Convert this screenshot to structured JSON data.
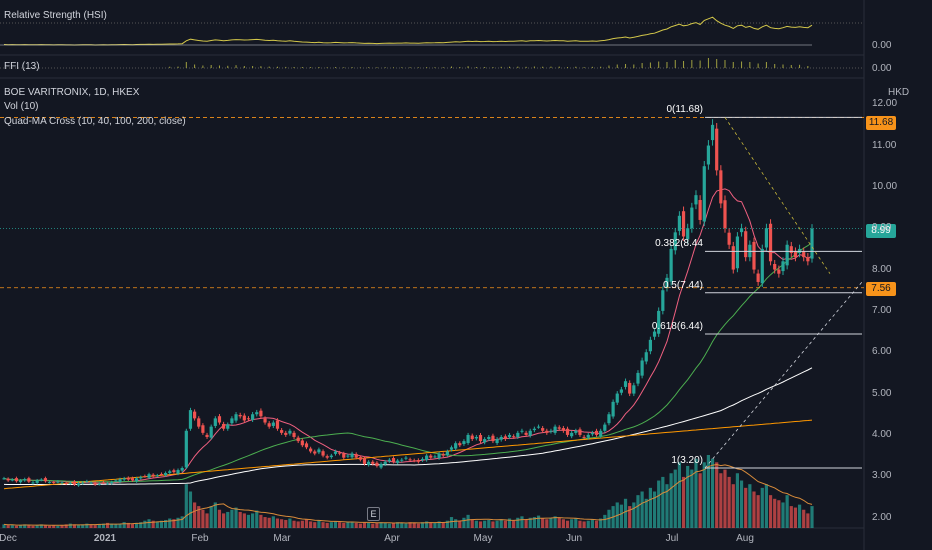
{
  "indicators": {
    "rs_label": "Relative Strength (HSI)",
    "rs_value": "0.00",
    "ffi_label": "FFI (13)",
    "ffi_value": "0.00",
    "symbol_title": "BOE VARITRONIX, 1D, HKEX",
    "vol_label": "Vol (10)",
    "ma_label": "Quad-MA Cross (10, 40, 100, 200, close)"
  },
  "currency": "HKD",
  "price_tags": {
    "high": "11.68",
    "last": "8.99",
    "support": "7.56"
  },
  "event_marker": "E",
  "colors": {
    "up": "#26a69a",
    "down": "#ef5350",
    "ma10": "#f06080",
    "ma40": "#4caf50",
    "ma100": "#ffffff",
    "ma200": "#ff9800",
    "rs": "#d4c84a",
    "vol_ma": "#d88b3a",
    "bg": "#131722",
    "high_tag": "#f7931a",
    "last_tag": "#26a69a"
  },
  "chart_data": {
    "type": "candlestick",
    "ylim": [
      1.7,
      12.15
    ],
    "y_ticks": [
      "12.00",
      "11.00",
      "10.00",
      "9.00",
      "8.00",
      "7.00",
      "6.00",
      "5.00",
      "4.00",
      "3.00",
      "2.00"
    ],
    "x_ticks": [
      "Dec",
      "2021",
      "Feb",
      "Mar",
      "Apr",
      "May",
      "Jun",
      "Jul",
      "Aug"
    ],
    "fib_levels": [
      {
        "label": "0(11.68)",
        "value": 11.68
      },
      {
        "label": "0.382(8.44",
        "value": 8.44
      },
      {
        "label": "0.5(7.44)",
        "value": 7.44
      },
      {
        "label": "0.618(6.44)",
        "value": 6.44
      },
      {
        "label": "1(3.20)",
        "value": 3.2
      }
    ],
    "horizontal_levels": {
      "high": 11.68,
      "last": 8.99,
      "support": 7.56
    },
    "series": {
      "close": [
        2.95,
        2.9,
        2.92,
        2.88,
        2.9,
        2.93,
        2.87,
        2.85,
        2.9,
        2.92,
        2.88,
        2.86,
        2.84,
        2.87,
        2.85,
        2.82,
        2.84,
        2.8,
        2.83,
        2.85,
        2.88,
        2.85,
        2.8,
        2.82,
        2.85,
        2.83,
        2.86,
        2.9,
        2.93,
        2.95,
        2.92,
        2.9,
        2.95,
        2.98,
        3.0,
        3.05,
        3.0,
        3.02,
        3.05,
        3.08,
        3.12,
        3.1,
        3.15,
        3.2,
        4.1,
        4.6,
        4.4,
        4.2,
        4.05,
        3.95,
        4.2,
        4.4,
        4.3,
        4.15,
        4.25,
        4.4,
        4.5,
        4.45,
        4.35,
        4.4,
        4.5,
        4.55,
        4.45,
        4.3,
        4.2,
        4.3,
        4.15,
        4.05,
        4.0,
        4.1,
        3.95,
        3.85,
        3.75,
        3.7,
        3.6,
        3.55,
        3.65,
        3.5,
        3.45,
        3.5,
        3.6,
        3.55,
        3.45,
        3.5,
        3.55,
        3.45,
        3.4,
        3.3,
        3.35,
        3.3,
        3.25,
        3.3,
        3.35,
        3.4,
        3.35,
        3.38,
        3.4,
        3.45,
        3.4,
        3.38,
        3.35,
        3.42,
        3.5,
        3.45,
        3.48,
        3.55,
        3.5,
        3.6,
        3.7,
        3.8,
        3.75,
        3.85,
        4.0,
        3.9,
        3.95,
        3.85,
        3.9,
        3.95,
        3.85,
        3.9,
        3.95,
        3.9,
        4.0,
        3.95,
        4.05,
        4.1,
        4.0,
        4.1,
        4.15,
        4.2,
        4.1,
        4.05,
        4.1,
        4.2,
        4.15,
        4.1,
        4.0,
        4.05,
        4.1,
        4.0,
        3.95,
        4.0,
        4.05,
        4.0,
        4.1,
        4.25,
        4.5,
        4.8,
        5.0,
        5.1,
        5.3,
        5.0,
        5.2,
        5.5,
        5.8,
        6.0,
        6.3,
        6.5,
        7.0,
        7.5,
        7.8,
        8.5,
        8.9,
        9.3,
        8.8,
        9.0,
        9.5,
        9.8,
        9.2,
        10.5,
        11.0,
        11.5,
        10.4,
        9.6,
        9.0,
        8.6,
        8.0,
        8.8,
        9.0,
        8.3,
        8.6,
        8.0,
        7.7,
        8.5,
        9.0,
        8.2,
        8.0,
        7.9,
        8.2,
        8.6,
        8.4,
        8.3,
        8.5,
        8.3,
        8.2,
        8.99
      ],
      "volume_relative": [
        0.05,
        0.04,
        0.04,
        0.03,
        0.04,
        0.05,
        0.04,
        0.03,
        0.04,
        0.05,
        0.04,
        0.03,
        0.04,
        0.03,
        0.04,
        0.05,
        0.06,
        0.05,
        0.04,
        0.05,
        0.06,
        0.05,
        0.04,
        0.05,
        0.06,
        0.07,
        0.06,
        0.05,
        0.06,
        0.08,
        0.07,
        0.06,
        0.07,
        0.08,
        0.1,
        0.12,
        0.1,
        0.09,
        0.1,
        0.11,
        0.13,
        0.12,
        0.14,
        0.16,
        0.6,
        0.5,
        0.35,
        0.3,
        0.25,
        0.2,
        0.3,
        0.35,
        0.25,
        0.2,
        0.22,
        0.25,
        0.28,
        0.22,
        0.2,
        0.18,
        0.2,
        0.24,
        0.18,
        0.15,
        0.14,
        0.16,
        0.13,
        0.12,
        0.11,
        0.13,
        0.1,
        0.09,
        0.1,
        0.12,
        0.09,
        0.08,
        0.1,
        0.08,
        0.07,
        0.08,
        0.09,
        0.08,
        0.07,
        0.08,
        0.09,
        0.07,
        0.06,
        0.08,
        0.07,
        0.06,
        0.07,
        0.08,
        0.07,
        0.06,
        0.07,
        0.08,
        0.07,
        0.06,
        0.08,
        0.07,
        0.06,
        0.08,
        0.09,
        0.08,
        0.07,
        0.09,
        0.08,
        0.1,
        0.15,
        0.12,
        0.1,
        0.14,
        0.18,
        0.12,
        0.1,
        0.09,
        0.1,
        0.11,
        0.09,
        0.1,
        0.12,
        0.1,
        0.13,
        0.1,
        0.14,
        0.16,
        0.12,
        0.14,
        0.15,
        0.17,
        0.13,
        0.12,
        0.14,
        0.16,
        0.14,
        0.12,
        0.1,
        0.12,
        0.13,
        0.1,
        0.09,
        0.1,
        0.12,
        0.1,
        0.13,
        0.18,
        0.25,
        0.3,
        0.35,
        0.32,
        0.4,
        0.3,
        0.35,
        0.45,
        0.5,
        0.4,
        0.55,
        0.5,
        0.65,
        0.7,
        0.6,
        0.75,
        0.8,
        0.9,
        0.7,
        0.85,
        0.8,
        0.95,
        0.75,
        0.9,
        1.0,
        0.95,
        0.9,
        0.75,
        0.8,
        0.7,
        0.6,
        0.75,
        0.65,
        0.55,
        0.6,
        0.5,
        0.45,
        0.55,
        0.6,
        0.45,
        0.4,
        0.38,
        0.35,
        0.45,
        0.3,
        0.28,
        0.32,
        0.25,
        0.2,
        0.3
      ]
    }
  }
}
